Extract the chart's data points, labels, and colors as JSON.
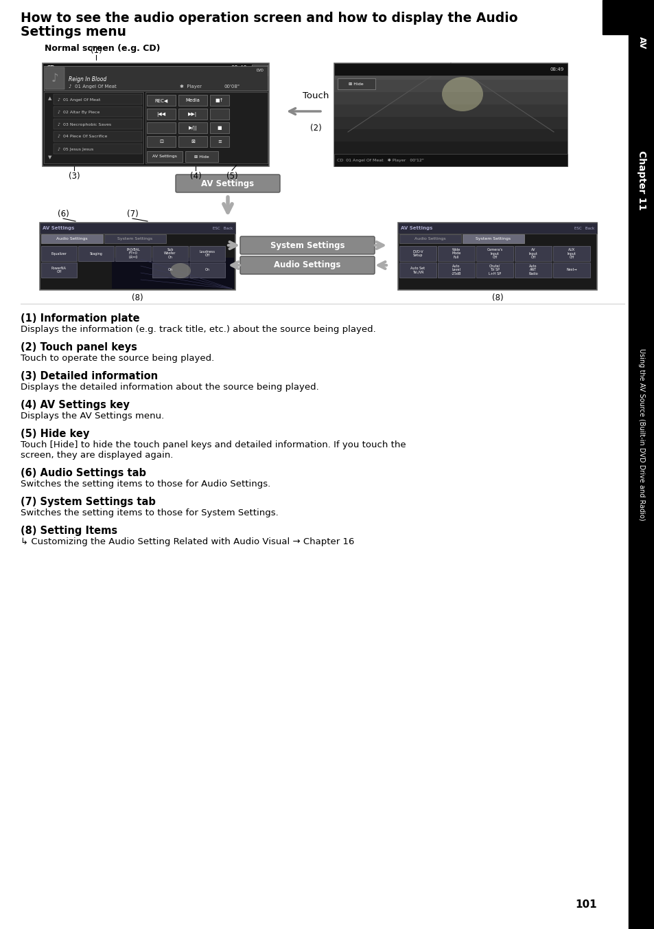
{
  "title_line1": "How to see the audio operation screen and how to display the Audio",
  "title_line2": "Settings menu",
  "subtitle": "Normal screen (e.g. CD)",
  "sidebar_text": "Using the AV Source (Built-in DVD Drive and Radio)",
  "chapter_label": "Chapter 11",
  "page_number": "101",
  "section_items": [
    {
      "heading_prefix": "(1) ",
      "heading_bold": "Information plate",
      "body": "Displays the information (e.g. track title, etc.) about the source being played."
    },
    {
      "heading_prefix": "(2) ",
      "heading_bold": "Touch panel keys",
      "body": "Touch to operate the source being played."
    },
    {
      "heading_prefix": "(3) ",
      "heading_bold": "Detailed information",
      "body": "Displays the detailed information about the source being played."
    },
    {
      "heading_prefix": "(4) ",
      "heading_bold": "AV Settings key",
      "body": "Displays the AV Settings menu."
    },
    {
      "heading_prefix": "(5) ",
      "heading_bold": "Hide key",
      "body": "Touch [Hide] to hide the touch panel keys and detailed information. If you touch the screen, they are displayed again.",
      "hide_bold": true
    },
    {
      "heading_prefix": "(6) ",
      "heading_bold": "Audio Settings tab",
      "body": "Switches the setting items to those for Audio Settings."
    },
    {
      "heading_prefix": "(7) ",
      "heading_bold": "System Settings tab",
      "body": "Switches the setting items to those for System Settings."
    },
    {
      "heading_prefix": "(8) ",
      "heading_bold": "Setting Items",
      "body": "↳  Customizing the Audio Setting Related with Audio Visual → Chapter 16"
    }
  ]
}
